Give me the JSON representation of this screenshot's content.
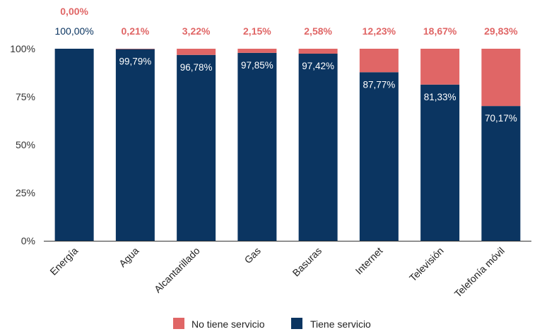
{
  "chart_data": {
    "type": "bar",
    "stacked": true,
    "categories": [
      "Energía",
      "Agua",
      "Alcantarillado",
      "Gas",
      "Basuras",
      "Internet",
      "Televisión",
      "Telefonía móvil"
    ],
    "series": [
      {
        "name": "Tiene servicio",
        "color": "#0b3561",
        "values": [
          100.0,
          99.79,
          96.78,
          97.85,
          97.42,
          87.77,
          81.33,
          70.17
        ],
        "labels": [
          "100,00%",
          "99,79%",
          "96,78%",
          "97,85%",
          "97,42%",
          "87,77%",
          "81,33%",
          "70,17%"
        ]
      },
      {
        "name": "No tiene servicio",
        "color": "#e06666",
        "values": [
          0.0,
          0.21,
          3.22,
          2.15,
          2.58,
          12.23,
          18.67,
          29.83
        ],
        "labels": [
          "0,00%",
          "0,21%",
          "3,22%",
          "2,15%",
          "2,58%",
          "12,23%",
          "18,67%",
          "29,83%"
        ]
      }
    ],
    "y_ticks": [
      "0%",
      "25%",
      "50%",
      "75%",
      "100%"
    ],
    "ylim": [
      0,
      100
    ],
    "grid": false,
    "legend_position": "bottom",
    "title": "",
    "xlabel": "",
    "ylabel": ""
  }
}
